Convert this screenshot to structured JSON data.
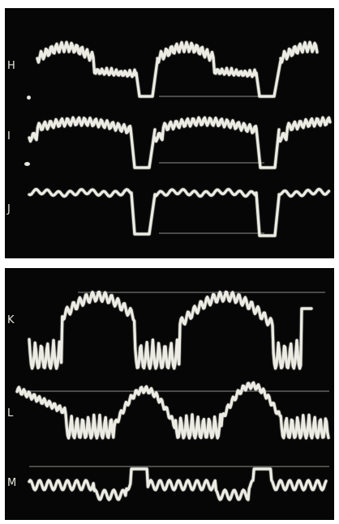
{
  "scope": {
    "top_panel": {
      "labels": [
        "H",
        "I",
        "J"
      ],
      "trace_color": "#ecece4",
      "background": "#060606"
    },
    "bottom_panel": {
      "labels": [
        "K",
        "L",
        "M"
      ],
      "trace_color": "#ecece4",
      "background": "#060606"
    }
  }
}
